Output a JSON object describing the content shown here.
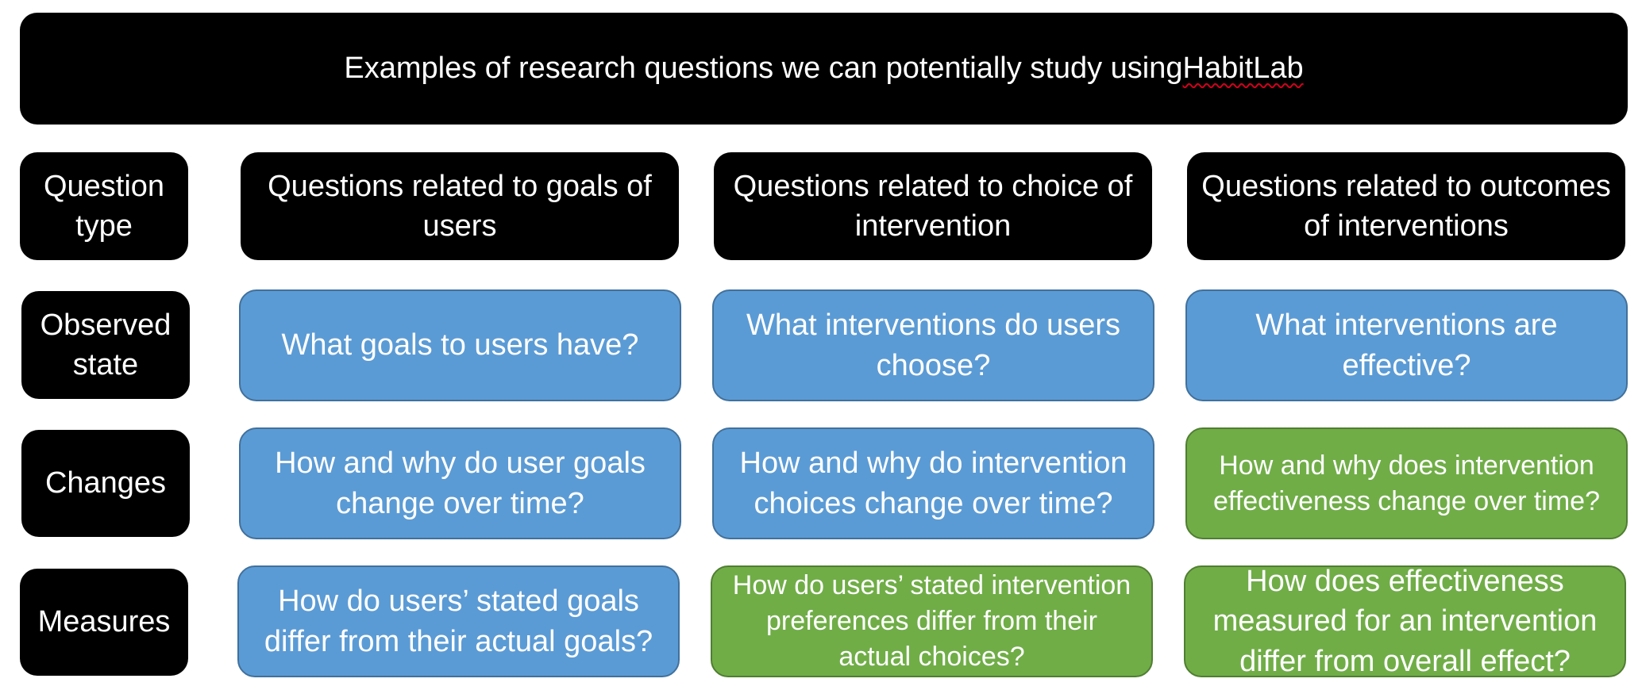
{
  "title": {
    "prefix": "Examples of research questions we can potentially study using ",
    "highlight": "HabitLab"
  },
  "colors": {
    "header": "#000000",
    "blue": "#5b9bd5",
    "green": "#70ad47"
  },
  "row_labels": {
    "question_type": "Question type",
    "observed_state": "Observed state",
    "changes": "Changes",
    "measures": "Measures"
  },
  "column_headers": {
    "goals": "Questions related to goals of users",
    "choice": "Questions related to choice of intervention",
    "outcomes": "Questions related to outcomes of interventions"
  },
  "cells": {
    "observed": {
      "goals": "What goals to users have?",
      "choice": "What interventions do users choose?",
      "outcomes": "What interventions are effective?"
    },
    "changes": {
      "goals": "How and why do user goals change over time?",
      "choice": "How and why do intervention choices change over time?",
      "outcomes": "How and why does intervention effectiveness change over time?"
    },
    "measures": {
      "goals": "How do users’ stated goals differ from their actual goals?",
      "choice": "How do users’ stated intervention preferences differ from their actual choices?",
      "outcomes": "How does effectiveness measured for an intervention differ from overall effect?"
    }
  }
}
